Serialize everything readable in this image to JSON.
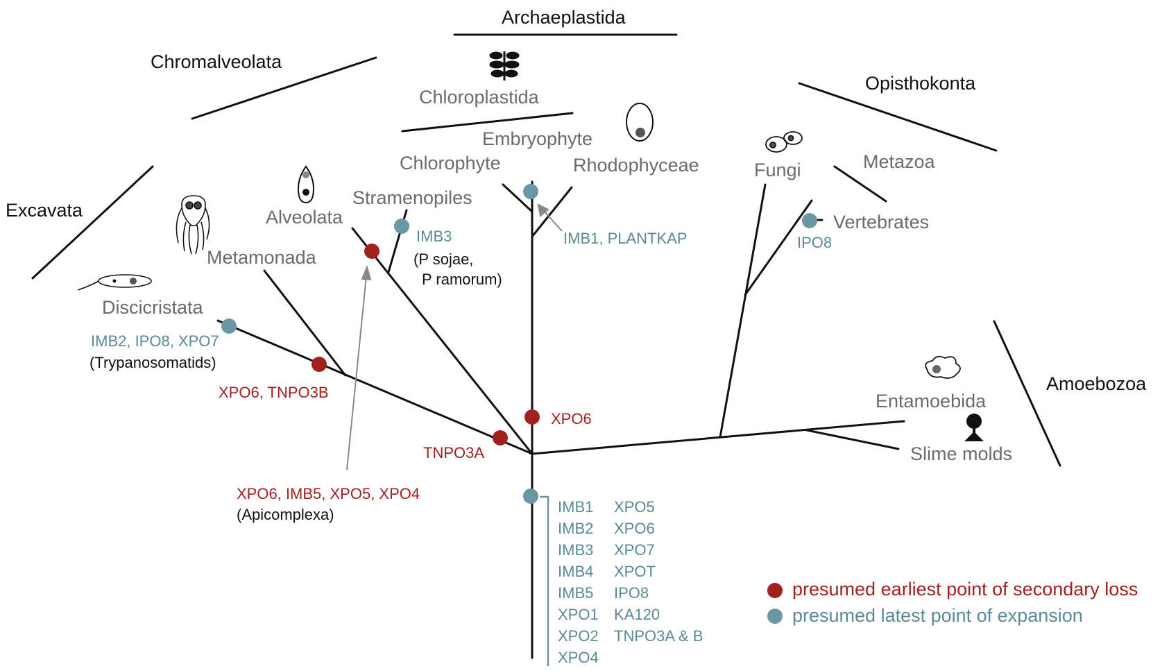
{
  "supergroups": {
    "archaeplastida": "Archaeplastida",
    "chromalveolata": "Chromalveolata",
    "opisthokonta": "Opisthokonta",
    "excavata": "Excavata",
    "amoebozoa": "Amoebozoa"
  },
  "clades": {
    "chloroplastida": "Chloroplastida",
    "embryophyte": "Embryophyte",
    "chlorophyte": "Chlorophyte",
    "rhodophyceae": "Rhodophyceae",
    "fungi": "Fungi",
    "metazoa": "Metazoa",
    "vertebrates": "Vertebrates",
    "stramenopiles": "Stramenopiles",
    "alveolata": "Alveolata",
    "metamonada": "Metamonada",
    "discicristata": "Discicristata",
    "entamoebida": "Entamoebida",
    "slime_molds": "Slime molds"
  },
  "events": {
    "plant": "IMB1, PLANTKAP",
    "vertebrates": "IPO8",
    "stramenopiles_genes": "IMB3",
    "stramenopiles_species_1": "(P sojae,",
    "stramenopiles_species_2": "P ramorum)",
    "trypanosomatids_genes": "IMB2, IPO8, XPO7",
    "trypanosomatids_label": "(Trypanosomatids)",
    "metamonada_loss": "XPO6, TNPO3B",
    "embryophyte_loss": "XPO6",
    "stem_loss": "TNPO3A",
    "apicomplexa_loss": "XPO6, IMB5, XPO5, XPO4",
    "apicomplexa_label": "(Apicomplexa)"
  },
  "ancestral_set": {
    "col1": [
      "IMB1",
      "IMB2",
      "IMB3",
      "IMB4",
      "IMB5",
      "XPO1",
      "XPO2",
      "XPO4"
    ],
    "col2": [
      "XPO5",
      "XPO6",
      "XPO7",
      "XPOT",
      "IPO8",
      "KA120",
      "TNPO3A & B"
    ]
  },
  "legend": {
    "loss": "presumed earliest point of secondary loss",
    "expansion": "presumed latest point of expansion"
  },
  "colors": {
    "loss": "#a32020",
    "expansion": "#6b97a3",
    "clade_text": "#6b6b6b",
    "line": "#111111"
  },
  "icons": [
    "plant-icon",
    "red-alga-cell-icon",
    "alveolate-cell-icon",
    "metamonad-flagellate-icon",
    "discicristate-flagellate-icon",
    "yeast-cells-icon",
    "amoeba-icon",
    "slime-mold-fruiting-body-icon"
  ]
}
